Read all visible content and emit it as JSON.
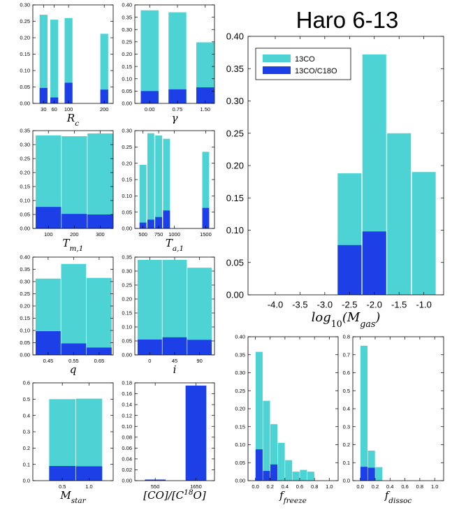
{
  "figure": {
    "title": "Haro 6-13",
    "legend_entries": [
      "13CO",
      "13CO/C18O"
    ],
    "colors": {
      "13co": "#4dd3d3",
      "ratio": "#1c3fe8"
    }
  },
  "chart_data": [
    {
      "id": "rc",
      "type": "bar",
      "xlabel": "R_c",
      "ylim": [
        0,
        0.3
      ],
      "yticks": [
        "0.00",
        "0.05",
        "0.10",
        "0.15",
        "0.20",
        "0.25",
        "0.30"
      ],
      "xticks": [
        {
          "v": 30,
          "label": "30"
        },
        {
          "v": 60,
          "label": "60"
        },
        {
          "v": 100,
          "label": "100"
        },
        {
          "v": 200,
          "label": "200"
        }
      ],
      "xlim": [
        0,
        225
      ],
      "bars": [
        {
          "x": 30,
          "w": 22,
          "v13": 0.27,
          "vr": 0.047
        },
        {
          "x": 60,
          "w": 22,
          "v13": 0.255,
          "vr": 0.018
        },
        {
          "x": 100,
          "w": 22,
          "v13": 0.26,
          "vr": 0.063
        },
        {
          "x": 200,
          "w": 22,
          "v13": 0.212,
          "vr": 0.042
        }
      ]
    },
    {
      "id": "gamma",
      "type": "bar",
      "xlabel": "γ",
      "ylim": [
        0,
        0.4
      ],
      "yticks": [
        "0.00",
        "0.05",
        "0.10",
        "0.15",
        "0.20",
        "0.25",
        "0.30",
        "0.35",
        "0.40"
      ],
      "xticks": [
        {
          "v": 0,
          "label": "0.00"
        },
        {
          "v": 0.75,
          "label": "0.75"
        },
        {
          "v": 1.5,
          "label": "1.50"
        }
      ],
      "xlim": [
        -0.4,
        1.75
      ],
      "bars": [
        {
          "x": 0,
          "w": 0.48,
          "v13": 0.378,
          "vr": 0.05
        },
        {
          "x": 0.75,
          "w": 0.48,
          "v13": 0.37,
          "vr": 0.057
        },
        {
          "x": 1.5,
          "w": 0.48,
          "v13": 0.248,
          "vr": 0.065
        }
      ]
    },
    {
      "id": "tm1",
      "type": "bar",
      "xlabel": "T_m,1",
      "ylim": [
        0,
        0.35
      ],
      "yticks": [
        "0.00",
        "0.05",
        "0.10",
        "0.15",
        "0.20",
        "0.25",
        "0.30",
        "0.35"
      ],
      "xticks": [
        {
          "v": 100,
          "label": "100"
        },
        {
          "v": 200,
          "label": "200"
        },
        {
          "v": 300,
          "label": "300"
        }
      ],
      "xlim": [
        40,
        350
      ],
      "bars": [
        {
          "x": 100,
          "w": 98,
          "v13": 0.333,
          "vr": 0.077
        },
        {
          "x": 200,
          "w": 98,
          "v13": 0.33,
          "vr": 0.052
        },
        {
          "x": 300,
          "w": 98,
          "v13": 0.34,
          "vr": 0.05
        }
      ]
    },
    {
      "id": "ta1",
      "type": "bar",
      "xlabel": "T_a,1",
      "ylim": [
        0,
        0.3
      ],
      "yticks": [
        "0.00",
        "0.05",
        "0.10",
        "0.15",
        "0.20",
        "0.25",
        "0.30"
      ],
      "xticks": [
        {
          "v": 500,
          "label": "500"
        },
        {
          "v": 750,
          "label": "750"
        },
        {
          "v": 1000,
          "label": "1000"
        },
        {
          "v": 1500,
          "label": "1500"
        }
      ],
      "xlim": [
        370,
        1640
      ],
      "bars": [
        {
          "x": 500,
          "w": 110,
          "v13": 0.195,
          "vr": 0.018
        },
        {
          "x": 625,
          "w": 110,
          "v13": 0.292,
          "vr": 0.027
        },
        {
          "x": 750,
          "w": 110,
          "v13": 0.285,
          "vr": 0.035
        },
        {
          "x": 875,
          "w": 110,
          "v13": 0.275,
          "vr": 0.055
        },
        {
          "x": 1500,
          "w": 110,
          "v13": 0.235,
          "vr": 0.063
        }
      ]
    },
    {
      "id": "q",
      "type": "bar",
      "xlabel": "q",
      "ylim": [
        0,
        0.4
      ],
      "yticks": [
        "0.00",
        "0.05",
        "0.10",
        "0.15",
        "0.20",
        "0.25",
        "0.30",
        "0.35",
        "0.40"
      ],
      "xticks": [
        {
          "v": 0.45,
          "label": "0.45"
        },
        {
          "v": 0.55,
          "label": "0.55"
        },
        {
          "v": 0.65,
          "label": "0.65"
        }
      ],
      "xlim": [
        0.39,
        0.705
      ],
      "bars": [
        {
          "x": 0.45,
          "w": 0.098,
          "v13": 0.312,
          "vr": 0.097
        },
        {
          "x": 0.55,
          "w": 0.098,
          "v13": 0.372,
          "vr": 0.047
        },
        {
          "x": 0.65,
          "w": 0.098,
          "v13": 0.315,
          "vr": 0.03
        }
      ]
    },
    {
      "id": "incl",
      "type": "bar",
      "xlabel": "i",
      "ylim": [
        0,
        0.35
      ],
      "yticks": [
        "0.00",
        "0.05",
        "0.10",
        "0.15",
        "0.20",
        "0.25",
        "0.30",
        "0.35"
      ],
      "xticks": [
        {
          "v": 0,
          "label": "0"
        },
        {
          "v": 45,
          "label": "45"
        },
        {
          "v": 90,
          "label": "90"
        }
      ],
      "xlim": [
        -27,
        117
      ],
      "bars": [
        {
          "x": 0,
          "w": 44,
          "v13": 0.34,
          "vr": 0.055
        },
        {
          "x": 45,
          "w": 44,
          "v13": 0.34,
          "vr": 0.063
        },
        {
          "x": 90,
          "w": 44,
          "v13": 0.312,
          "vr": 0.054
        }
      ]
    },
    {
      "id": "mstar",
      "type": "bar",
      "xlabel": "M_star",
      "ylim": [
        0,
        0.6
      ],
      "yticks": [
        "0.0",
        "0.1",
        "0.2",
        "0.3",
        "0.4",
        "0.5",
        "0.6"
      ],
      "xticks": [
        {
          "v": 0.5,
          "label": "0.5"
        },
        {
          "v": 1.0,
          "label": "1.0"
        }
      ],
      "xlim": [
        -0.05,
        1.45
      ],
      "bars": [
        {
          "x": 0.5,
          "w": 0.49,
          "v13": 0.5,
          "vr": 0.09
        },
        {
          "x": 1.0,
          "w": 0.49,
          "v13": 0.503,
          "vr": 0.088
        }
      ]
    },
    {
      "id": "coratio",
      "type": "bar",
      "xlabel": "[CO]/[C18O]",
      "ylim": [
        0,
        0.18
      ],
      "yticks": [
        "0.00",
        "0.02",
        "0.04",
        "0.06",
        "0.08",
        "0.10",
        "0.12",
        "0.14",
        "0.16",
        "0.18"
      ],
      "xticks": [
        {
          "v": 550,
          "label": "550"
        },
        {
          "v": 1650,
          "label": "1650"
        }
      ],
      "xlim": [
        0,
        2150
      ],
      "bars": [
        {
          "x": 550,
          "w": 560,
          "v13": 0.0,
          "vr": 0.002
        },
        {
          "x": 1650,
          "w": 560,
          "v13": 0.0,
          "vr": 0.175
        }
      ]
    },
    {
      "id": "mgas",
      "type": "bar",
      "xlabel": "log10(M_gas)",
      "ylim": [
        0,
        0.4
      ],
      "yticks": [
        "0.00",
        "0.05",
        "0.10",
        "0.15",
        "0.20",
        "0.25",
        "0.30",
        "0.35",
        "0.40"
      ],
      "xticks": [
        {
          "v": -4.0,
          "label": "-4.0"
        },
        {
          "v": -3.5,
          "label": "-3.5"
        },
        {
          "v": -3.0,
          "label": "-3.0"
        },
        {
          "v": -2.5,
          "label": "-2.5"
        },
        {
          "v": -2.0,
          "label": "-2.0"
        },
        {
          "v": -1.5,
          "label": "-1.5"
        },
        {
          "v": -1.0,
          "label": "-1.0"
        }
      ],
      "xlim": [
        -4.55,
        -0.6
      ],
      "bars": [
        {
          "x": -2.5,
          "w": 0.48,
          "v13": 0.188,
          "vr": 0.077
        },
        {
          "x": -2.0,
          "w": 0.48,
          "v13": 0.372,
          "vr": 0.098
        },
        {
          "x": -1.5,
          "w": 0.48,
          "v13": 0.25,
          "vr": 0.0
        },
        {
          "x": -1.0,
          "w": 0.48,
          "v13": 0.19,
          "vr": 0.0
        }
      ]
    },
    {
      "id": "ffreeze",
      "type": "bar",
      "xlabel": "f_freeze",
      "ylim": [
        0,
        0.4
      ],
      "yticks": [
        "0.00",
        "0.05",
        "0.10",
        "0.15",
        "0.20",
        "0.25",
        "0.30",
        "0.35",
        "0.40"
      ],
      "xticks": [
        {
          "v": 0.0,
          "label": "0.0"
        },
        {
          "v": 0.2,
          "label": "0.2"
        },
        {
          "v": 0.4,
          "label": "0.4"
        },
        {
          "v": 0.6,
          "label": "0.6"
        },
        {
          "v": 0.8,
          "label": "0.8"
        },
        {
          "v": 1.0,
          "label": "1.0"
        }
      ],
      "xlim": [
        -0.1,
        1.12
      ],
      "bars": [
        {
          "x": 0.05,
          "w": 0.095,
          "v13": 0.358,
          "vr": 0.087
        },
        {
          "x": 0.15,
          "w": 0.095,
          "v13": 0.222,
          "vr": 0.027
        },
        {
          "x": 0.25,
          "w": 0.095,
          "v13": 0.157,
          "vr": 0.045
        },
        {
          "x": 0.35,
          "w": 0.095,
          "v13": 0.105,
          "vr": 0.0
        },
        {
          "x": 0.45,
          "w": 0.095,
          "v13": 0.057,
          "vr": 0.0
        },
        {
          "x": 0.55,
          "w": 0.095,
          "v13": 0.025,
          "vr": 0.0
        },
        {
          "x": 0.65,
          "w": 0.095,
          "v13": 0.03,
          "vr": 0.0
        },
        {
          "x": 0.75,
          "w": 0.095,
          "v13": 0.025,
          "vr": 0.0
        }
      ]
    },
    {
      "id": "fdissoc",
      "type": "bar",
      "xlabel": "f_dissoc",
      "ylim": [
        0,
        0.8
      ],
      "yticks": [
        "0.0",
        "0.1",
        "0.2",
        "0.3",
        "0.4",
        "0.5",
        "0.6",
        "0.7",
        "0.8"
      ],
      "xticks": [
        {
          "v": 0.0,
          "label": "0.0"
        },
        {
          "v": 0.2,
          "label": "0.2"
        },
        {
          "v": 0.4,
          "label": "0.4"
        },
        {
          "v": 0.6,
          "label": "0.6"
        },
        {
          "v": 0.8,
          "label": "0.8"
        },
        {
          "v": 1.0,
          "label": "1.0"
        }
      ],
      "xlim": [
        -0.1,
        1.12
      ],
      "bars": [
        {
          "x": 0.05,
          "w": 0.095,
          "v13": 0.75,
          "vr": 0.077
        },
        {
          "x": 0.15,
          "w": 0.095,
          "v13": 0.167,
          "vr": 0.072
        },
        {
          "x": 0.25,
          "w": 0.095,
          "v13": 0.075,
          "vr": 0.0
        }
      ]
    }
  ]
}
